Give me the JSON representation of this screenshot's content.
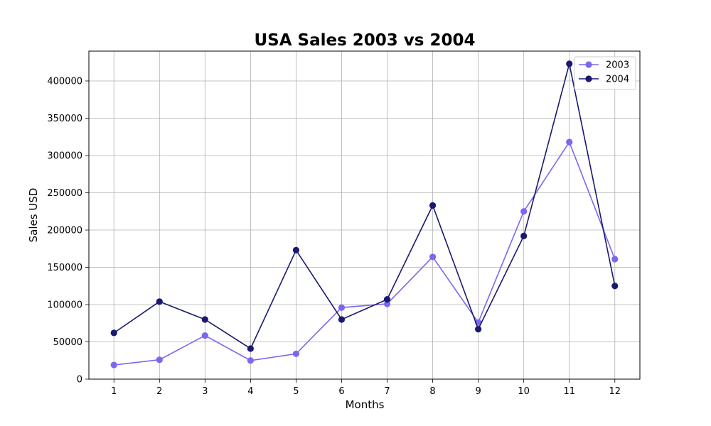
{
  "colors": {
    "series_2003": "#7b68ee",
    "series_2004": "#191970",
    "grid": "#b0b0b0",
    "axes": "#000000"
  },
  "chart_data": {
    "type": "line",
    "title": "USA Sales 2003 vs 2004",
    "xlabel": "Months",
    "ylabel": "Sales USD",
    "x": [
      1,
      2,
      3,
      4,
      5,
      6,
      7,
      8,
      9,
      10,
      11,
      12
    ],
    "x_ticks": [
      "1",
      "2",
      "3",
      "4",
      "5",
      "6",
      "7",
      "8",
      "9",
      "10",
      "11",
      "12"
    ],
    "xlim": [
      0.45,
      12.55
    ],
    "ylim": [
      0,
      440000
    ],
    "y_ticks": [
      0,
      50000,
      100000,
      150000,
      200000,
      250000,
      300000,
      350000,
      400000
    ],
    "y_tick_labels": [
      "0",
      "50000",
      "100000",
      "150000",
      "200000",
      "250000",
      "300000",
      "350000",
      "400000"
    ],
    "grid": true,
    "legend_position": "top-right",
    "series": [
      {
        "name": "2003",
        "color": "#7b68ee",
        "marker": "circle",
        "values": [
          19000,
          26000,
          58500,
          25000,
          34000,
          96000,
          101000,
          164000,
          76000,
          225000,
          318000,
          161000
        ]
      },
      {
        "name": "2004",
        "color": "#191970",
        "marker": "circle",
        "values": [
          62000,
          104000,
          80000,
          41000,
          173000,
          80000,
          107000,
          233000,
          67000,
          192000,
          423000,
          125000
        ]
      }
    ]
  }
}
